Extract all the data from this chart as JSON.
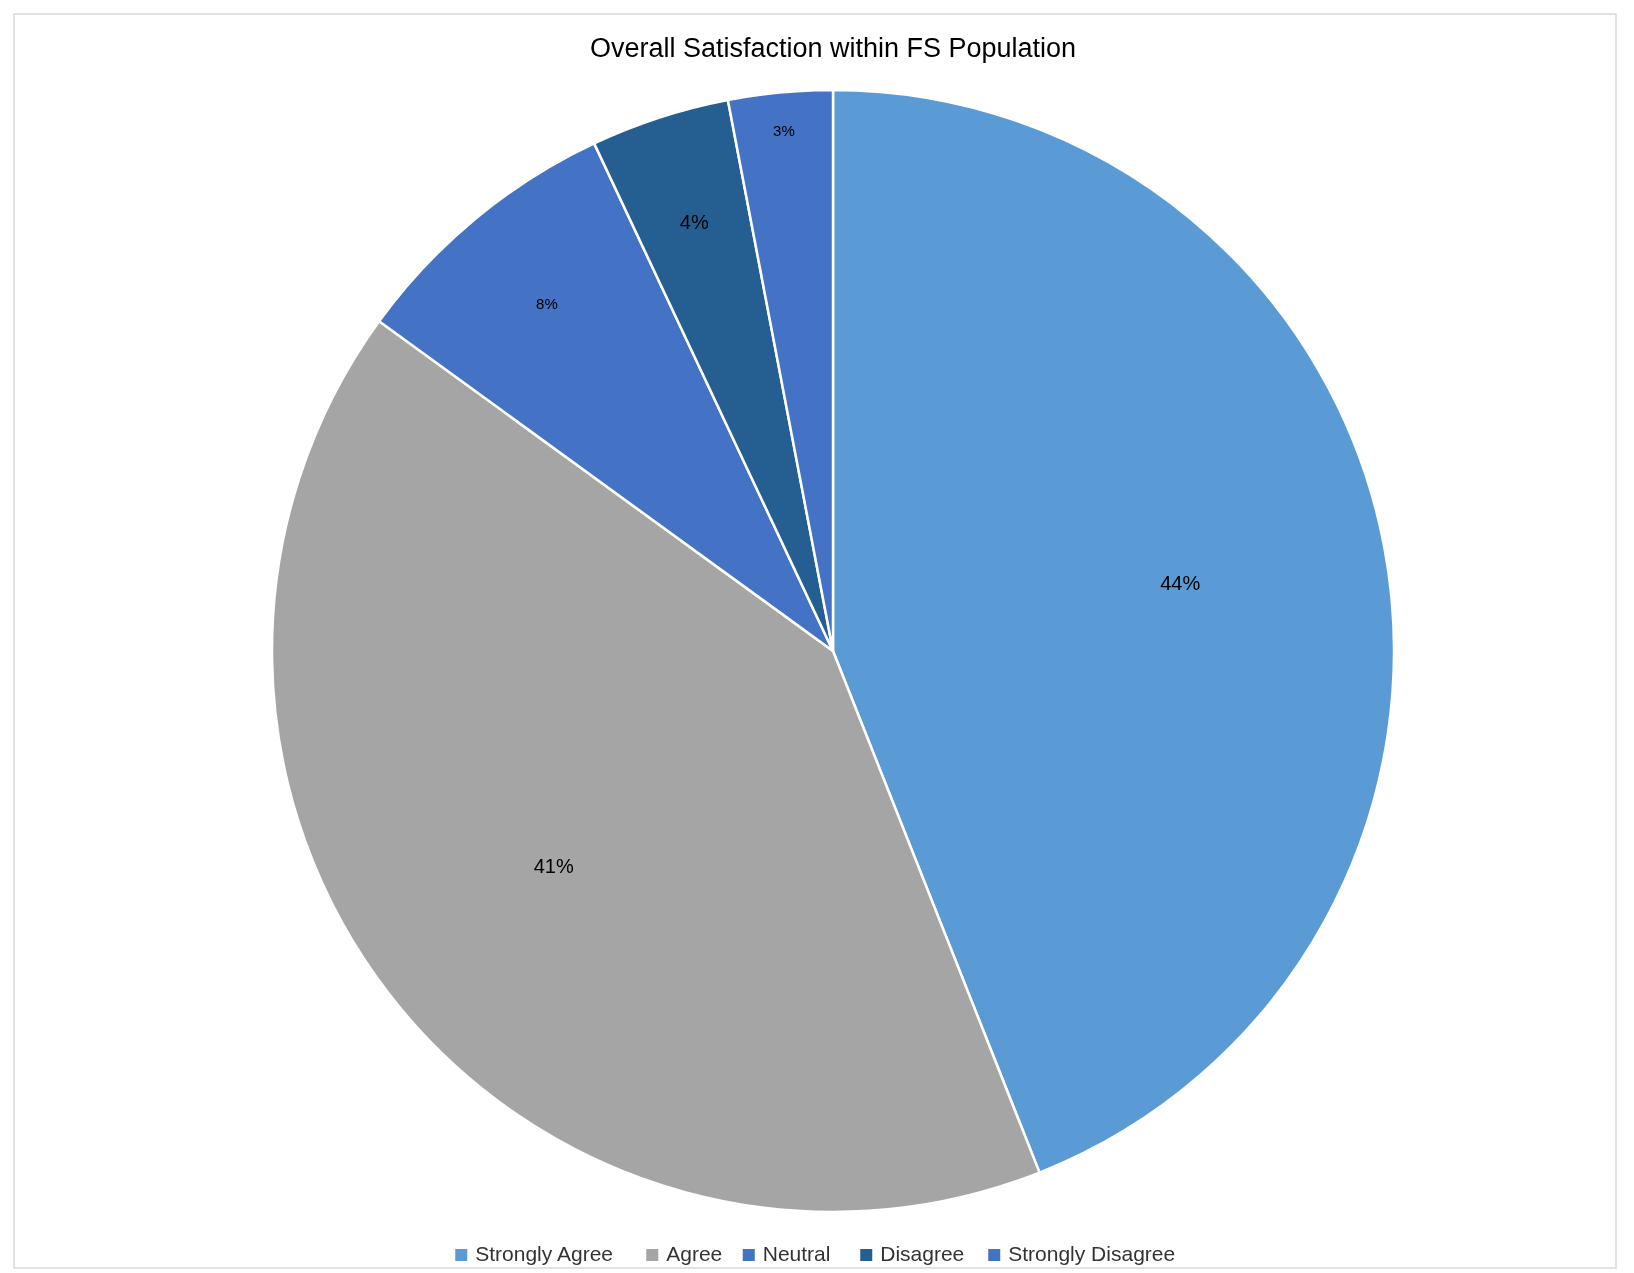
{
  "chart_data": {
    "type": "pie",
    "title": "Overall Satisfaction within FS Population",
    "categories": [
      "Strongly Agree",
      "Agree",
      "Neutral",
      "Disagree",
      "Strongly Disagree"
    ],
    "values": [
      44,
      41,
      8,
      4,
      3
    ],
    "colors": [
      "#5b9bd5",
      "#a5a5a5",
      "#4472c4",
      "#255e91",
      "#4472c4"
    ],
    "value_labels": [
      "44%",
      "41%",
      "8%",
      "4%",
      "3%"
    ],
    "legend": "bottom"
  }
}
